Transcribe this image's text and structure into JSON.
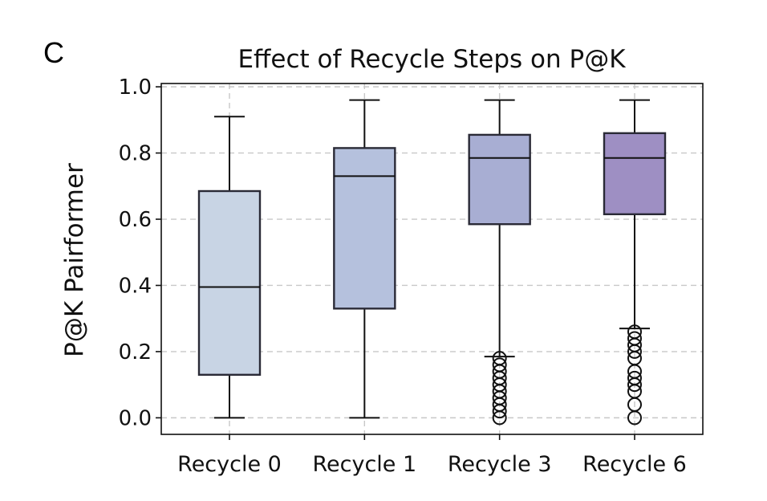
{
  "panel_label": "C",
  "chart_data": {
    "type": "box",
    "title": "Effect of Recycle Steps on P@K",
    "xlabel": "",
    "ylabel": "P@K Pairformer",
    "ylim": [
      -0.05,
      1.01
    ],
    "yticks": [
      "0.0",
      "0.2",
      "0.4",
      "0.6",
      "0.8",
      "1.0"
    ],
    "grid": true,
    "categories": [
      "Recycle 0",
      "Recycle 1",
      "Recycle 3",
      "Recycle 6"
    ],
    "boxes": [
      {
        "name": "Recycle 0",
        "whisker_low": 0.0,
        "q1": 0.13,
        "median": 0.395,
        "q3": 0.685,
        "whisker_high": 0.91,
        "outliers": [],
        "color": "#c8d4e4"
      },
      {
        "name": "Recycle 1",
        "whisker_low": 0.0,
        "q1": 0.33,
        "median": 0.73,
        "q3": 0.815,
        "whisker_high": 0.96,
        "outliers": [],
        "color": "#b5c1dd"
      },
      {
        "name": "Recycle 3",
        "whisker_low": 0.185,
        "q1": 0.585,
        "median": 0.785,
        "q3": 0.855,
        "whisker_high": 0.96,
        "outliers": [
          0.0,
          0.02,
          0.04,
          0.06,
          0.08,
          0.1,
          0.12,
          0.14,
          0.16,
          0.18
        ],
        "color": "#a8aed3"
      },
      {
        "name": "Recycle 6",
        "whisker_low": 0.27,
        "q1": 0.615,
        "median": 0.785,
        "q3": 0.86,
        "whisker_high": 0.96,
        "outliers": [
          0.0,
          0.04,
          0.08,
          0.1,
          0.12,
          0.14,
          0.18,
          0.2,
          0.22,
          0.24,
          0.26
        ],
        "color": "#9e8fc3"
      }
    ]
  }
}
